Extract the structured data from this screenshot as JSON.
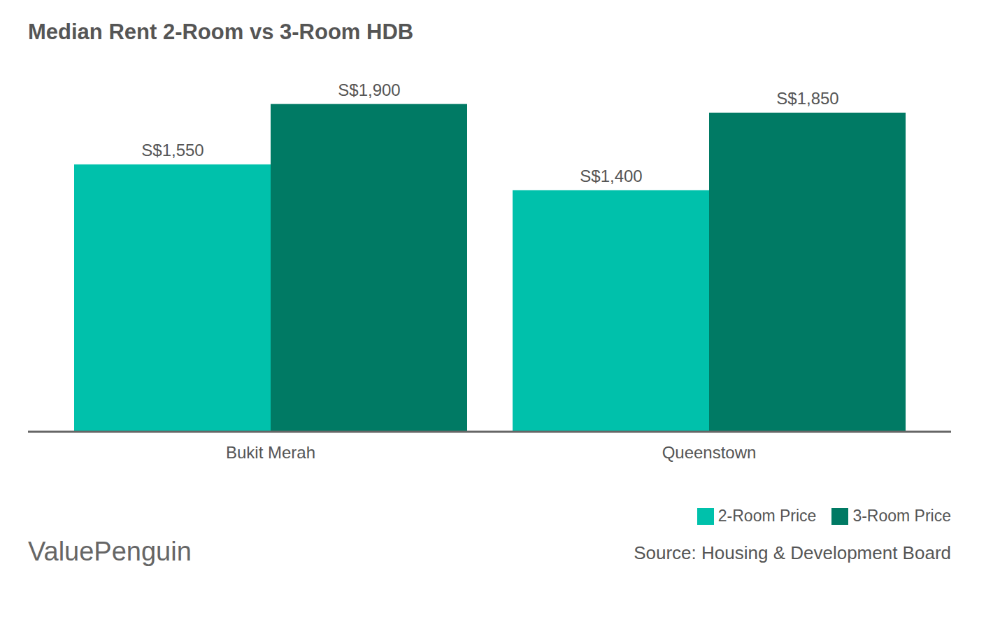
{
  "chart_data": {
    "type": "bar",
    "title": "Median Rent 2-Room vs 3-Room HDB",
    "categories": [
      "Bukit Merah",
      "Queenstown"
    ],
    "series": [
      {
        "name": "2-Room Price",
        "color": "#00c1ab",
        "values": [
          1550,
          1400
        ],
        "value_labels": [
          "S$1,550",
          "S$1,400"
        ]
      },
      {
        "name": "3-Room Price",
        "color": "#007a64",
        "values": [
          1900,
          1850
        ],
        "value_labels": [
          "S$1,900",
          "S$1,850"
        ]
      }
    ],
    "ylim": [
      0,
      2000
    ],
    "data_labels": true,
    "tick_labels": "x",
    "legend": "bottom-right",
    "source": "Source: Housing & Development Board",
    "credit": "ValuePenguin"
  }
}
